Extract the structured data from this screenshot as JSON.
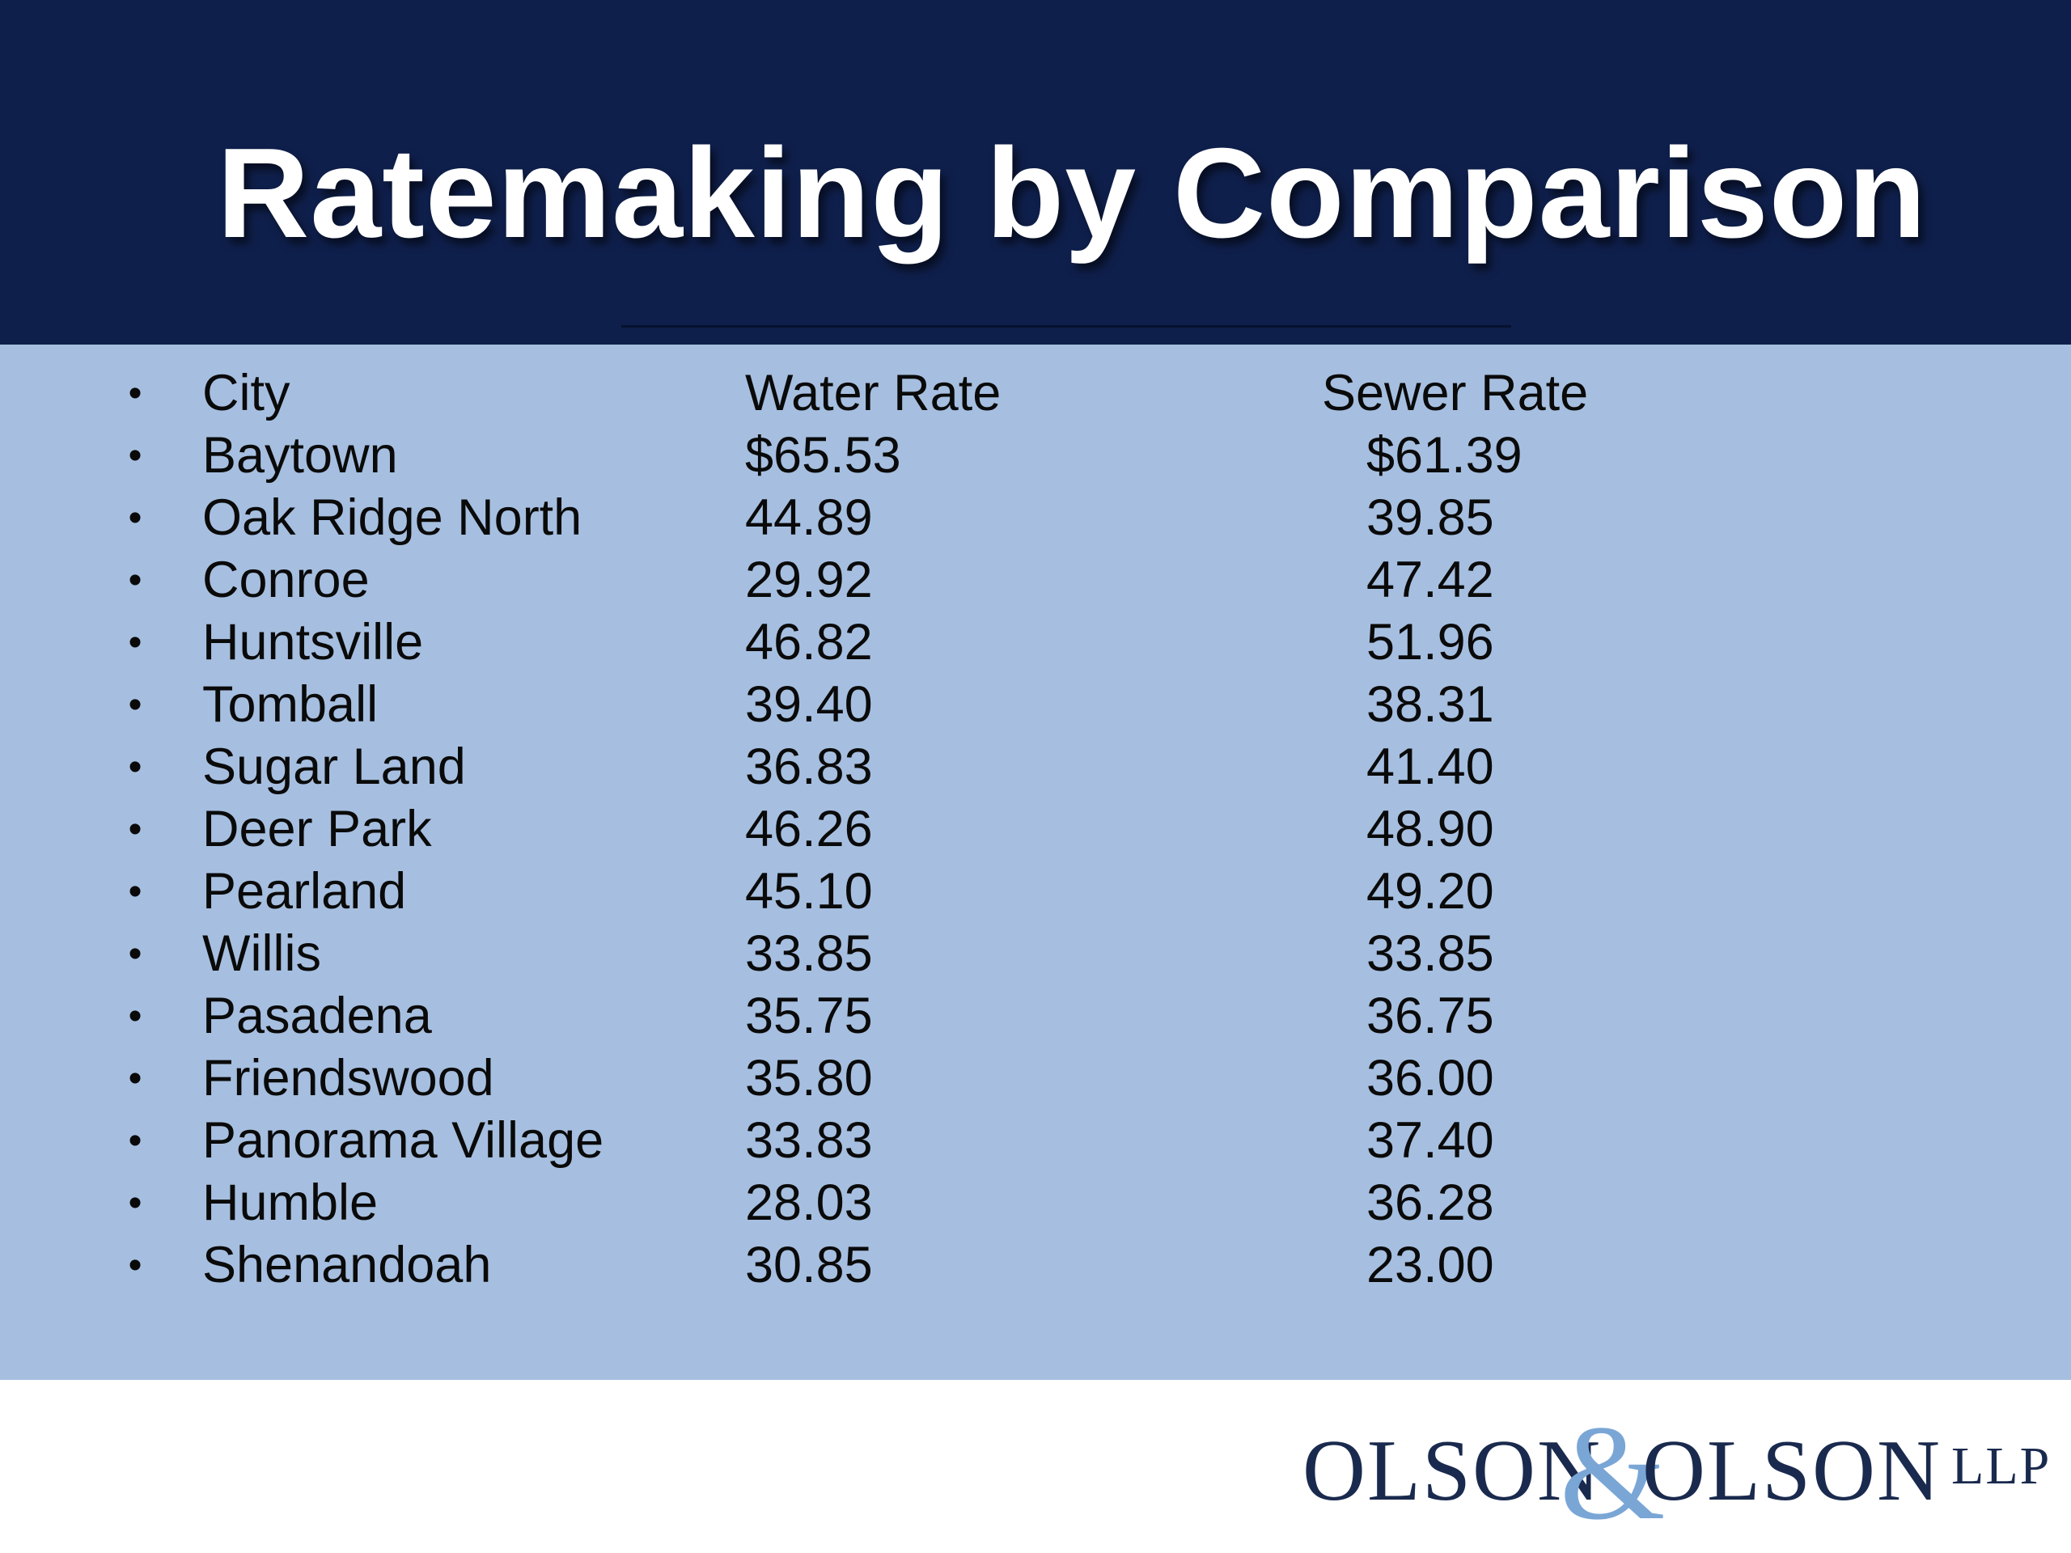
{
  "slide": {
    "title": "Ratemaking by Comparison"
  },
  "table": {
    "bullet": "•",
    "headers": {
      "city": "City",
      "water": "Water Rate",
      "sewer": "Sewer Rate"
    },
    "rows": [
      {
        "city": "Baytown",
        "water": "$65.53",
        "sewer": "$61.39"
      },
      {
        "city": "Oak Ridge North",
        "water": "44.89",
        "sewer": "39.85"
      },
      {
        "city": "Conroe",
        "water": "29.92",
        "sewer": "47.42"
      },
      {
        "city": "Huntsville",
        "water": "46.82",
        "sewer": "51.96"
      },
      {
        "city": "Tomball",
        "water": "39.40",
        "sewer": "38.31"
      },
      {
        "city": "Sugar Land",
        "water": "36.83",
        "sewer": "41.40"
      },
      {
        "city": "Deer Park",
        "water": "46.26",
        "sewer": "48.90"
      },
      {
        "city": "Pearland",
        "water": "45.10",
        "sewer": "49.20"
      },
      {
        "city": "Willis",
        "water": "33.85",
        "sewer": "33.85"
      },
      {
        "city": "Pasadena",
        "water": "35.75",
        "sewer": "36.75"
      },
      {
        "city": "Friendswood",
        "water": "35.80",
        "sewer": "36.00"
      },
      {
        "city": "Panorama Village",
        "water": "33.83",
        "sewer": "37.40"
      },
      {
        "city": "Humble",
        "water": "28.03",
        "sewer": "36.28"
      },
      {
        "city": "Shenandoah",
        "water": "30.85",
        "sewer": "23.00"
      }
    ]
  },
  "logo": {
    "word_left": "OLSON",
    "ampersand": "&",
    "word_right": "OLSON",
    "suffix": "LLP"
  },
  "colors": {
    "header_bg": "#0f1f4b",
    "body_bg": "#a6bfe0",
    "logo_text": "#1a2a4e",
    "logo_ampersand": "#7aa6d6"
  }
}
